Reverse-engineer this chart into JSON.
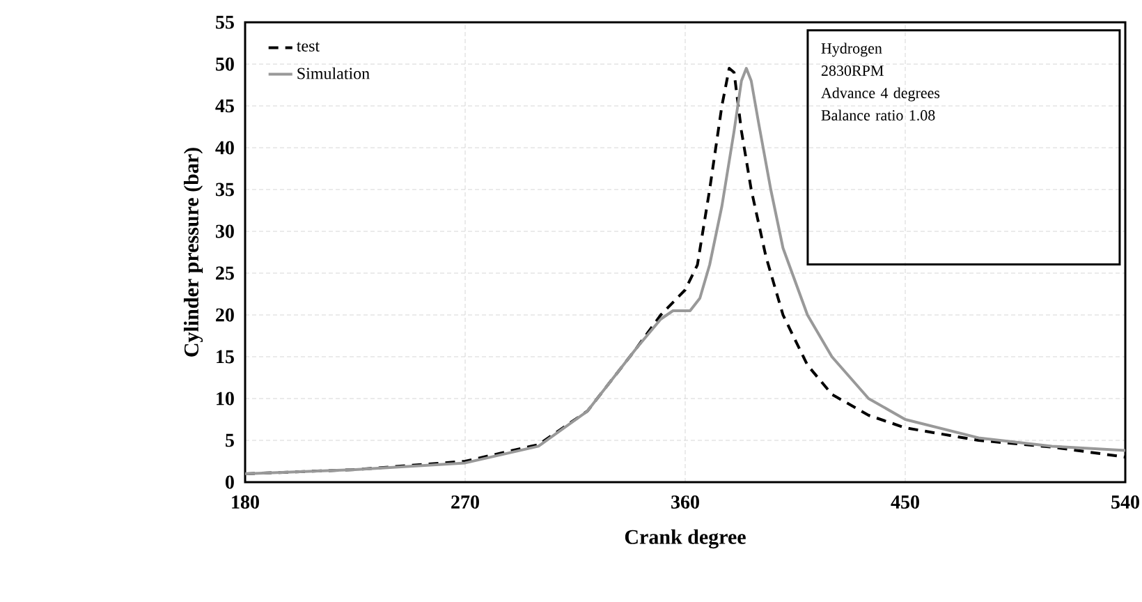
{
  "chart_data": {
    "type": "line",
    "xlabel": "Crank degree",
    "ylabel": "Cylinder pressure (bar)",
    "xlim": [
      180,
      540
    ],
    "xticks": [
      180,
      270,
      360,
      450,
      540
    ],
    "ylim": [
      0,
      55
    ],
    "yticks": [
      0,
      5,
      10,
      15,
      20,
      25,
      30,
      35,
      40,
      45,
      50,
      55
    ],
    "grid": true,
    "legend": "top left",
    "marker": "none",
    "annotations": [
      "Hydrogen",
      "2830RPM",
      "Advance 4 degrees",
      "Balance ratio 1.08"
    ],
    "series": [
      {
        "name": "test",
        "color": "#000000",
        "line_style": "dashed",
        "x": [
          180,
          225,
          270,
          300,
          320,
          340,
          350,
          360,
          365,
          370,
          375,
          378,
          380,
          383,
          387,
          393,
          400,
          410,
          420,
          435,
          450,
          480,
          510,
          540
        ],
        "values": [
          1,
          1.5,
          2.5,
          4.5,
          8.5,
          16,
          20,
          23,
          26,
          35,
          45,
          49.5,
          49,
          42,
          35,
          27,
          20,
          14,
          10.5,
          8,
          6.5,
          5,
          4.2,
          3
        ]
      },
      {
        "name": "Simulation",
        "color": "#999999",
        "line_style": "solid",
        "x": [
          180,
          225,
          270,
          300,
          320,
          340,
          350,
          355,
          362,
          366,
          370,
          375,
          380,
          383,
          385,
          387,
          390,
          395,
          400,
          410,
          420,
          435,
          450,
          480,
          510,
          540
        ],
        "values": [
          1,
          1.5,
          2.3,
          4.3,
          8.5,
          16,
          19.5,
          20.5,
          20.5,
          22,
          26,
          33,
          42,
          48,
          49.5,
          48,
          43,
          35,
          28,
          20,
          15,
          10,
          7.5,
          5.3,
          4.3,
          3.8
        ]
      }
    ]
  }
}
